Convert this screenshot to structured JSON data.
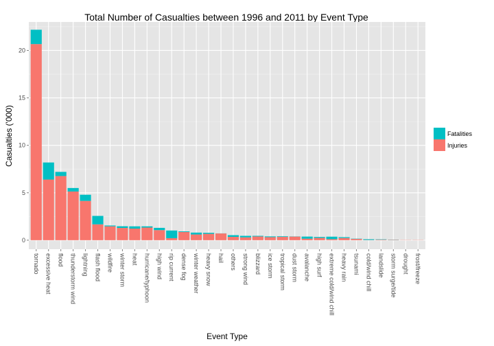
{
  "chart_data": {
    "type": "bar",
    "stacked": true,
    "title": "Total Number of Casualties between 1996 and 2011 by Event Type",
    "xlabel": "Event Type",
    "ylabel": "Casualties ('000)",
    "ylim": [
      0,
      24
    ],
    "yticks": [
      0,
      5,
      10,
      15,
      20
    ],
    "grid": true,
    "legend_position": "right",
    "categories": [
      "tornado",
      "excessive heat",
      "flood",
      "thunderstorm wind",
      "lightning",
      "flash flood",
      "wildfire",
      "winter storm",
      "heat",
      "hurricane/typhoon",
      "high wind",
      "rip current",
      "dense fog",
      "winter weather",
      "heavy snow",
      "hail",
      "others",
      "strong wind",
      "blizzard",
      "ice storm",
      "tropical storm",
      "dust storm",
      "avalanche",
      "high surf",
      "extreme cold/wind chill",
      "heavy rain",
      "tsunami",
      "cold/wind chill",
      "landslide",
      "storm surge/tide",
      "drought",
      "frost/freeze"
    ],
    "series": [
      {
        "name": "Injuries",
        "color": "#F8766D",
        "values": [
          20.67,
          6.39,
          6.76,
          5.13,
          4.14,
          1.67,
          1.46,
          1.29,
          1.22,
          1.33,
          1.06,
          0.21,
          0.86,
          0.6,
          0.67,
          0.71,
          0.35,
          0.3,
          0.39,
          0.32,
          0.35,
          0.38,
          0.16,
          0.24,
          0.11,
          0.23,
          0.13,
          0.02,
          0.05,
          0.04,
          0.02,
          0.02
        ]
      },
      {
        "name": "Fatalities",
        "color": "#00BFC4",
        "values": [
          1.51,
          1.8,
          0.44,
          0.37,
          0.65,
          0.89,
          0.09,
          0.18,
          0.24,
          0.13,
          0.24,
          0.81,
          0.07,
          0.2,
          0.11,
          0.01,
          0.18,
          0.16,
          0.07,
          0.08,
          0.06,
          0.02,
          0.22,
          0.1,
          0.26,
          0.09,
          0.03,
          0.08,
          0.04,
          0.02,
          0.0,
          0.0
        ]
      }
    ]
  }
}
